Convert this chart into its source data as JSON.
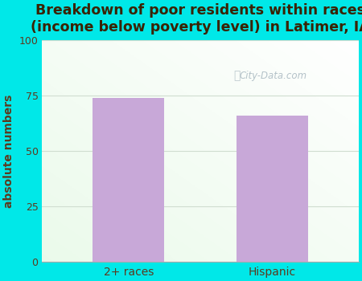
{
  "categories": [
    "2+ races",
    "Hispanic"
  ],
  "values": [
    74,
    66
  ],
  "bar_color": "#c8a8d8",
  "title_line1": "Breakdown of poor residents within races",
  "title_line2": "(income below poverty level) in Latimer, IA",
  "ylabel": "absolute numbers",
  "ylim": [
    0,
    100
  ],
  "yticks": [
    0,
    25,
    50,
    75,
    100
  ],
  "title_color": "#3a2200",
  "ylabel_color": "#5c3a1e",
  "tick_color": "#5c3a1e",
  "background_color": "#00e8e8",
  "watermark": "City-Data.com",
  "title_fontsize": 12.5,
  "ylabel_fontsize": 10,
  "grid_color": "#d0ddd0",
  "plot_xlim": [
    -0.6,
    1.6
  ]
}
